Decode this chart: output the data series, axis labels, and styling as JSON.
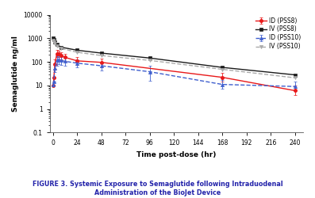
{
  "title": "FIGURE 3. Systemic Exposure to Semaglutide following Intraduodenal\nAdministration of the BioJet Device",
  "xlabel": "Time post-dose (hr)",
  "ylabel": "Semaglutide ng/ml",
  "xticks": [
    0,
    24,
    48,
    72,
    96,
    120,
    144,
    168,
    192,
    216,
    240
  ],
  "ylim_log": [
    0.1,
    10000
  ],
  "xlim": [
    -3,
    248
  ],
  "series": [
    {
      "label": "ID (PSS8)",
      "color": "#e8191a",
      "linestyle": "-",
      "marker": "o",
      "markerfacecolor": "#e8191a",
      "markersize": 3,
      "linewidth": 1.0,
      "x": [
        0.5,
        1,
        2,
        4,
        6,
        8,
        12,
        24,
        48,
        168,
        240
      ],
      "y": [
        10,
        22,
        80,
        225,
        220,
        185,
        155,
        110,
        95,
        22,
        6
      ],
      "yerr_lo": [
        0,
        0,
        30,
        70,
        65,
        55,
        45,
        35,
        35,
        8,
        2
      ],
      "yerr_hi": [
        0,
        0,
        45,
        90,
        80,
        65,
        55,
        45,
        45,
        12,
        4
      ]
    },
    {
      "label": "IV (PSS8)",
      "color": "#1a1a1a",
      "linestyle": "-",
      "marker": "s",
      "markerfacecolor": "#1a1a1a",
      "markersize": 3,
      "linewidth": 1.0,
      "x": [
        0.5,
        1,
        2,
        4,
        8,
        24,
        48,
        96,
        168,
        240
      ],
      "y": [
        1050,
        900,
        700,
        550,
        420,
        310,
        235,
        145,
        58,
        28
      ],
      "yerr_lo": [
        0,
        0,
        0,
        0,
        0,
        0,
        0,
        0,
        0,
        0
      ],
      "yerr_hi": [
        0,
        0,
        0,
        0,
        0,
        0,
        0,
        0,
        0,
        0
      ]
    },
    {
      "label": "ID (PSS10)",
      "color": "#3f5fce",
      "linestyle": "--",
      "marker": "^",
      "markerfacecolor": "#3f5fce",
      "markersize": 3,
      "linewidth": 1.0,
      "x": [
        0.5,
        1,
        2,
        4,
        6,
        8,
        12,
        24,
        48,
        96,
        168,
        240
      ],
      "y": [
        11,
        15,
        55,
        115,
        125,
        115,
        105,
        88,
        68,
        38,
        11,
        9
      ],
      "yerr_lo": [
        0,
        0,
        18,
        45,
        45,
        40,
        35,
        30,
        25,
        22,
        4,
        3
      ],
      "yerr_hi": [
        0,
        0,
        25,
        55,
        55,
        50,
        44,
        38,
        32,
        28,
        6,
        5
      ]
    },
    {
      "label": "IV (PSS10)",
      "color": "#aaaaaa",
      "linestyle": "--",
      "marker": "v",
      "markerfacecolor": "#aaaaaa",
      "markersize": 3,
      "linewidth": 1.0,
      "x": [
        0.5,
        1,
        2,
        4,
        8,
        24,
        48,
        96,
        168,
        240
      ],
      "y": [
        780,
        720,
        580,
        460,
        370,
        255,
        185,
        115,
        48,
        21
      ],
      "yerr_lo": [
        0,
        0,
        0,
        0,
        0,
        0,
        0,
        0,
        0,
        0
      ],
      "yerr_hi": [
        0,
        0,
        0,
        0,
        0,
        0,
        0,
        0,
        0,
        0
      ]
    }
  ],
  "bg_color": "#ffffff",
  "title_color": "#2222aa",
  "title_fontsize": 5.8,
  "axis_label_fontsize": 6.5,
  "tick_fontsize": 5.5,
  "legend_fontsize": 5.5
}
